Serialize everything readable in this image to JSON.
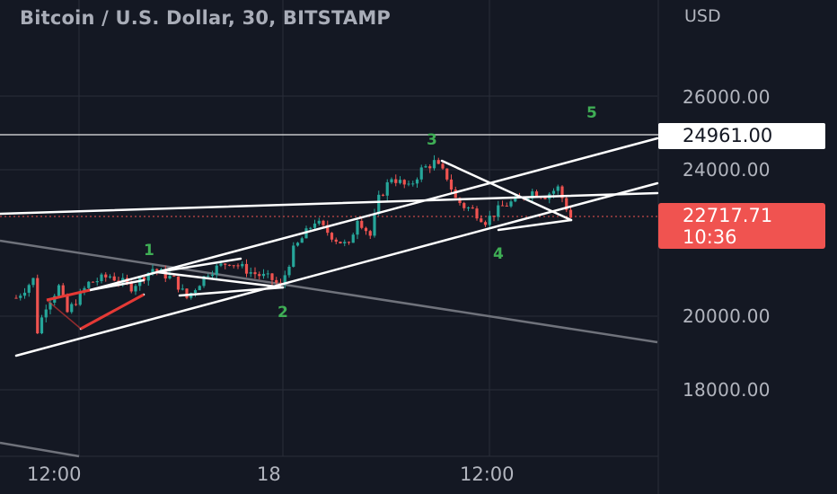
{
  "header": {
    "title": "Bitcoin / U.S. Dollar, 30, BITSTAMP",
    "currency": "USD"
  },
  "price_axis": {
    "labels": [
      "26000.00",
      "24000.00",
      "20000.00",
      "18000.00"
    ]
  },
  "time_axis": {
    "labels": [
      "12:00",
      "18",
      "12:00"
    ]
  },
  "tags": {
    "level_price": "24961.00",
    "last_price": "22717.71",
    "countdown": "10:36"
  },
  "wave_labels": [
    "1",
    "2",
    "3",
    "4",
    "5"
  ],
  "colors": {
    "background": "#141823",
    "grid": "#2a2e39",
    "candle_up": "#26a69a",
    "candle_down": "#ef5350",
    "drawing_lines": "#ffffff",
    "wave_labels": "#3fae55",
    "last_price_tag": "#f05350"
  },
  "chart_data": {
    "type": "candlestick",
    "symbol": "Bitcoin / U.S. Dollar",
    "interval": "30",
    "exchange": "BITSTAMP",
    "ylim": [
      17000,
      27000
    ],
    "y_ticks": [
      18000,
      20000,
      24000,
      26000
    ],
    "x_ticks": [
      "12:00",
      "18",
      "12:00"
    ],
    "last_price": 22717.71,
    "marked_level": 24961.0,
    "price_path": [
      [
        0,
        20500
      ],
      [
        4,
        21000
      ],
      [
        5,
        19600
      ],
      [
        7,
        20300
      ],
      [
        10,
        20800
      ],
      [
        12,
        20100
      ],
      [
        17,
        20900
      ],
      [
        22,
        21100
      ],
      [
        27,
        20800
      ],
      [
        32,
        21300
      ],
      [
        37,
        21000
      ],
      [
        40,
        20500
      ],
      [
        45,
        21200
      ],
      [
        50,
        21500
      ],
      [
        55,
        21200
      ],
      [
        60,
        21000
      ],
      [
        62,
        20800
      ],
      [
        65,
        21800
      ],
      [
        70,
        22600
      ],
      [
        75,
        22100
      ],
      [
        78,
        21900
      ],
      [
        80,
        22700
      ],
      [
        83,
        22200
      ],
      [
        85,
        23200
      ],
      [
        88,
        23800
      ],
      [
        92,
        23500
      ],
      [
        95,
        24000
      ],
      [
        98,
        24200
      ],
      [
        101,
        23800
      ],
      [
        103,
        23200
      ],
      [
        105,
        23000
      ],
      [
        107,
        22900
      ],
      [
        110,
        22600
      ],
      [
        114,
        23000
      ],
      [
        118,
        23200
      ],
      [
        121,
        23400
      ],
      [
        124,
        23300
      ],
      [
        127,
        23500
      ],
      [
        130,
        22700
      ]
    ],
    "wave_points": [
      {
        "label": "1",
        "price": 21100
      },
      {
        "label": "2",
        "price": 20900
      },
      {
        "label": "3",
        "price": 24200
      },
      {
        "label": "4",
        "price": 22400
      },
      {
        "label": "5"
      }
    ]
  }
}
